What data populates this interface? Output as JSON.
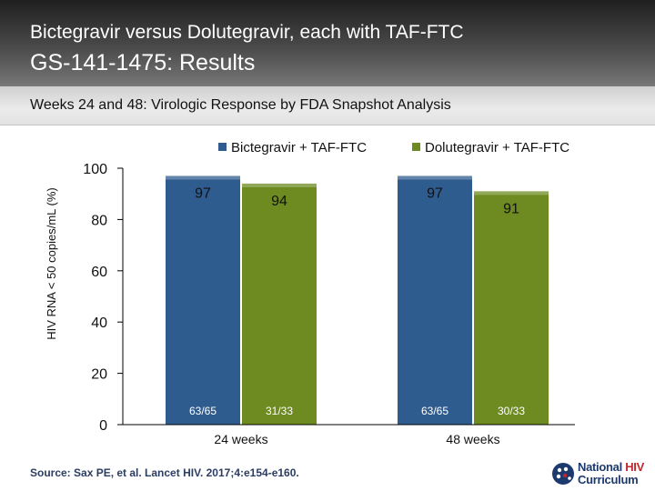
{
  "header": {
    "title": "Bictegravir versus Dolutegravir, each with TAF-FTC",
    "subtitle": "GS-141-1475: Results"
  },
  "subheader": {
    "text": "Weeks 24 and 48: Virologic Response by FDA Snapshot Analysis"
  },
  "chart_data": {
    "type": "bar",
    "title": "",
    "xlabel": "",
    "ylabel": "HIV RNA < 50 copies/mL (%)",
    "ylim": [
      0,
      100
    ],
    "yticks": [
      0,
      20,
      40,
      60,
      80,
      100
    ],
    "grid": false,
    "legend_position": "top-right",
    "categories": [
      "24 weeks",
      "48 weeks"
    ],
    "series": [
      {
        "name": "Bictegravir + TAF-FTC",
        "color": "#2f5c8f",
        "values": [
          97,
          97
        ],
        "fractions": [
          "63/65",
          "63/65"
        ]
      },
      {
        "name": "Dolutegravir + TAF-FTC",
        "color": "#6e8b22",
        "values": [
          94,
          91
        ],
        "fractions": [
          "31/33",
          "30/33"
        ]
      }
    ]
  },
  "footer": {
    "source": "Source: Sax PE, et al. Lancet HIV. 2017;4:e154-e160."
  },
  "logo": {
    "line1_prefix": "National ",
    "line1_highlight": "HIV",
    "line2": "Curriculum"
  }
}
